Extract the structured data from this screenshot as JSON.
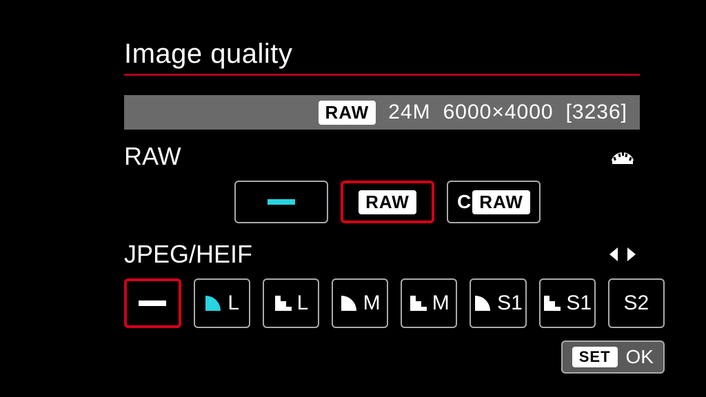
{
  "colors": {
    "bg": "#000000",
    "text": "#ffffff",
    "rule": "#b00020",
    "statusbar": "#6a6a6a",
    "border": "#aaaaaa",
    "selected": "#d4001a",
    "cyan": "#27d4e0",
    "footer_bg": "#5a5a5a"
  },
  "title": "Image quality",
  "status": {
    "badge": "RAW",
    "megapixels": "24M",
    "resolution": "6000×4000",
    "shots_remaining": "[3236]"
  },
  "raw": {
    "label": "RAW",
    "options": [
      {
        "id": "none",
        "type": "dash",
        "dash_color": "#27d4e0",
        "selected": false
      },
      {
        "id": "raw",
        "type": "raw_badge",
        "text": "RAW",
        "selected": true
      },
      {
        "id": "craw",
        "type": "craw",
        "prefix": "C",
        "text": "RAW",
        "selected": false
      }
    ]
  },
  "jpeg": {
    "label": "JPEG/HEIF",
    "options": [
      {
        "id": "none",
        "type": "dash",
        "dash_color": "#ffffff",
        "selected": true
      },
      {
        "id": "fine-L",
        "type": "quality",
        "quality": "fine",
        "quality_color": "#27d4e0",
        "size": "L"
      },
      {
        "id": "normal-L",
        "type": "quality",
        "quality": "normal",
        "quality_color": "#ffffff",
        "size": "L"
      },
      {
        "id": "fine-M",
        "type": "quality",
        "quality": "fine",
        "quality_color": "#ffffff",
        "size": "M"
      },
      {
        "id": "normal-M",
        "type": "quality",
        "quality": "normal",
        "quality_color": "#ffffff",
        "size": "M"
      },
      {
        "id": "fine-S1",
        "type": "quality",
        "quality": "fine",
        "quality_color": "#ffffff",
        "size": "S1"
      },
      {
        "id": "normal-S1",
        "type": "quality",
        "quality": "normal",
        "quality_color": "#ffffff",
        "size": "S1"
      },
      {
        "id": "S2",
        "type": "text",
        "size": "S2"
      }
    ]
  },
  "footer": {
    "set": "SET",
    "ok": "OK"
  }
}
